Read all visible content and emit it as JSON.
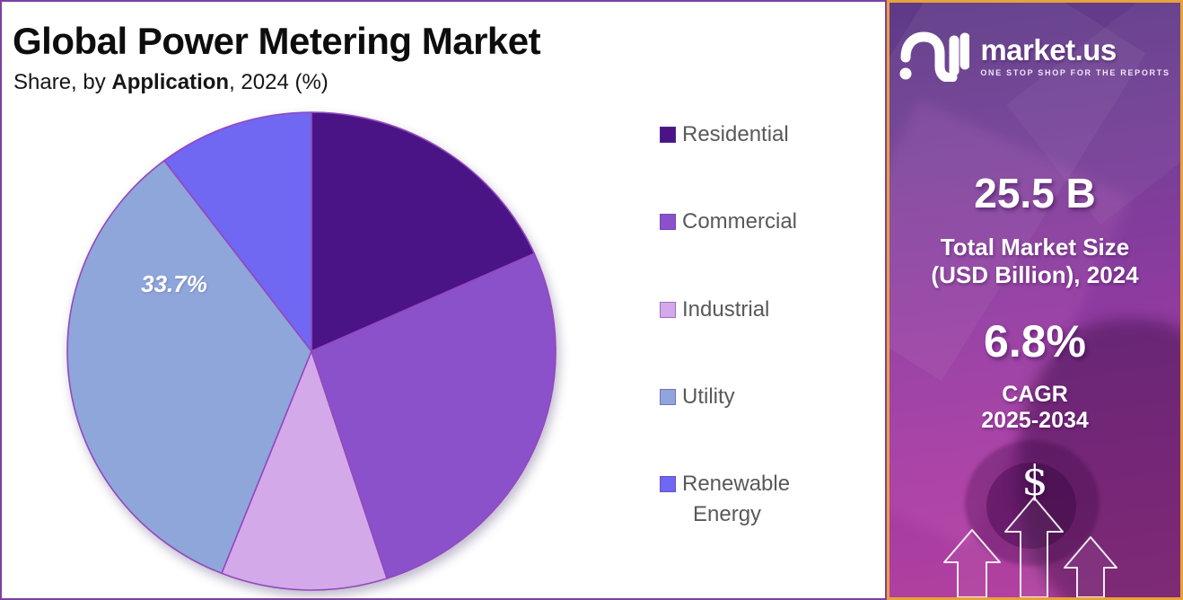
{
  "header": {
    "title": "Global Power Metering Market",
    "subtitle_prefix": "Share, by ",
    "subtitle_emphasis": "Application",
    "subtitle_suffix": ", 2024 (%)"
  },
  "chart_data": {
    "type": "pie",
    "title": "Global Power Metering Market",
    "subtitle": "Share, by Application, 2024 (%)",
    "unit": "percent",
    "direction": "clockwise",
    "start_angle_deg": 0,
    "legend_position": "right",
    "slices": [
      {
        "label": "Residential",
        "value": 18.3,
        "color": "#4a1487"
      },
      {
        "label": "Commercial",
        "value": 26.7,
        "color": "#8b51cb"
      },
      {
        "label": "Industrial",
        "value": 11.0,
        "color": "#d3a9e9"
      },
      {
        "label": "Utility",
        "value": 33.7,
        "color": "#8fa6db",
        "data_label": "33.7%"
      },
      {
        "label": "Renewable Energy",
        "value": 10.3,
        "color": "#7067f2"
      }
    ],
    "note": "Only the Utility slice carries a visible data label (33.7%); other slice values are estimated from arc angles."
  },
  "sidebar": {
    "brand": "market.us",
    "tagline": "ONE STOP SHOP FOR THE REPORTS",
    "market_size": {
      "value": "25.5 B",
      "label_line1": "Total Market Size",
      "label_line2": "(USD Billion), 2024"
    },
    "cagr": {
      "value": "6.8%",
      "label_line1": "CAGR",
      "label_line2": "2025-2034"
    },
    "dollar_symbol": "$"
  },
  "colors": {
    "main_border": "#7d3fa4",
    "sidebar_border": "#e8a23c",
    "pie_stroke": "#9448bd",
    "legend_text": "#595959",
    "title_text": "#0d0d0d",
    "sidebar_gradient_top": "#5e3a87",
    "sidebar_gradient_bottom": "#b4429f"
  }
}
